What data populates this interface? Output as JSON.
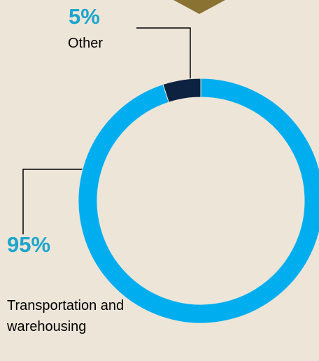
{
  "chart_data": {
    "type": "donut",
    "categories": [
      "Other",
      "Transportation and warehousing"
    ],
    "values": [
      5,
      95
    ],
    "value_labels": [
      "5%",
      "95%"
    ],
    "colors": [
      "#0d2240",
      "#00aeef"
    ]
  }
}
